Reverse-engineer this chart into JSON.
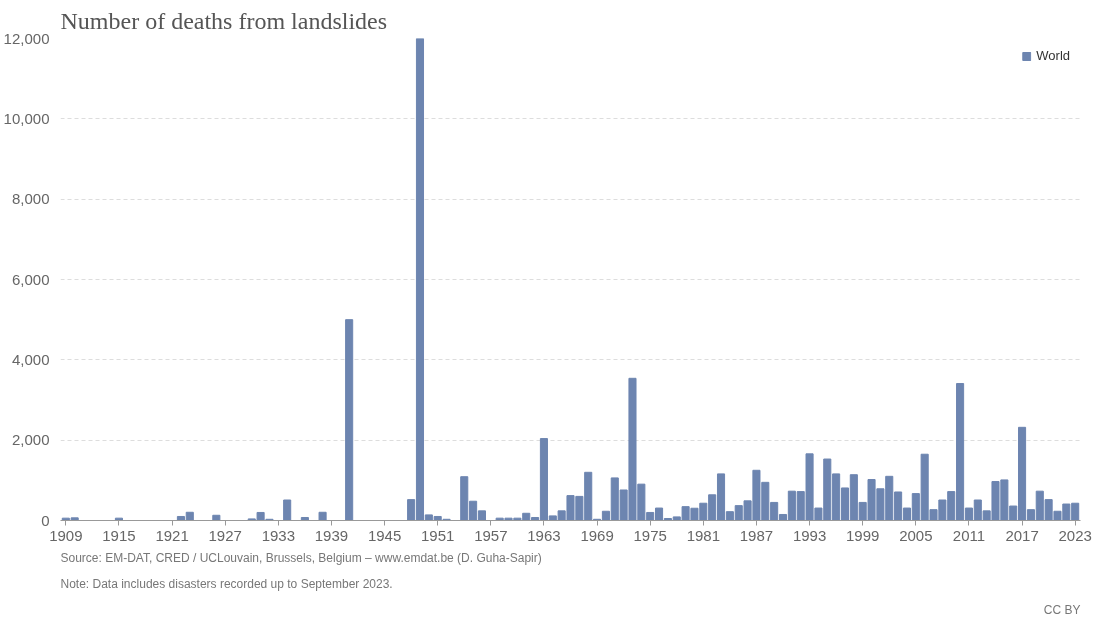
{
  "chart_data": {
    "type": "bar",
    "title": "Number of deaths from landslides",
    "x": [
      1909,
      1910,
      1911,
      1912,
      1913,
      1914,
      1915,
      1916,
      1917,
      1918,
      1919,
      1920,
      1921,
      1922,
      1923,
      1924,
      1925,
      1926,
      1927,
      1928,
      1929,
      1930,
      1931,
      1932,
      1933,
      1934,
      1935,
      1936,
      1937,
      1938,
      1939,
      1940,
      1941,
      1942,
      1943,
      1944,
      1945,
      1946,
      1947,
      1948,
      1949,
      1950,
      1951,
      1952,
      1953,
      1954,
      1955,
      1956,
      1957,
      1958,
      1959,
      1960,
      1961,
      1962,
      1963,
      1964,
      1965,
      1966,
      1967,
      1968,
      1969,
      1970,
      1971,
      1972,
      1973,
      1974,
      1975,
      1976,
      1977,
      1978,
      1979,
      1980,
      1981,
      1982,
      1983,
      1984,
      1985,
      1986,
      1987,
      1988,
      1989,
      1990,
      1991,
      1992,
      1993,
      1994,
      1995,
      1996,
      1997,
      1998,
      1999,
      2000,
      2001,
      2002,
      2003,
      2004,
      2005,
      2006,
      2007,
      2008,
      2009,
      2010,
      2011,
      2012,
      2013,
      2014,
      2015,
      2016,
      2017,
      2018,
      2019,
      2020,
      2021,
      2022,
      2023
    ],
    "series": [
      {
        "name": "World",
        "color": "#6d85b0",
        "values": [
          58,
          66,
          null,
          null,
          null,
          null,
          58,
          null,
          null,
          null,
          null,
          null,
          null,
          100,
          205,
          null,
          null,
          130,
          null,
          null,
          null,
          40,
          200,
          30,
          null,
          510,
          null,
          75,
          null,
          205,
          null,
          null,
          5000,
          null,
          null,
          null,
          null,
          null,
          null,
          520,
          12000,
          140,
          100,
          30,
          null,
          1090,
          480,
          240,
          null,
          58,
          58,
          58,
          180,
          75,
          2040,
          115,
          240,
          620,
          600,
          1200,
          30,
          230,
          1060,
          760,
          3540,
          905,
          200,
          310,
          50,
          90,
          345,
          305,
          430,
          640,
          1160,
          220,
          370,
          490,
          1250,
          950,
          450,
          150,
          730,
          720,
          1660,
          310,
          1530,
          1160,
          810,
          1140,
          450,
          1020,
          790,
          1100,
          710,
          310,
          670,
          1650,
          270,
          510,
          720,
          3410,
          310,
          510,
          240,
          970,
          1010,
          360,
          2320,
          270,
          730,
          520,
          230,
          410,
          430
        ]
      }
    ],
    "xlim": [
      1908.4,
      2023.6
    ],
    "xticks": [
      1909,
      1915,
      1921,
      1927,
      1933,
      1939,
      1945,
      1951,
      1957,
      1963,
      1969,
      1975,
      1981,
      1987,
      1993,
      1999,
      2005,
      2011,
      2017,
      2023
    ],
    "ylim": [
      0,
      12000
    ],
    "yticks": [
      {
        "value": 0,
        "label": "0"
      },
      {
        "value": 2000,
        "label": "2,000"
      },
      {
        "value": 4000,
        "label": "4,000"
      },
      {
        "value": 6000,
        "label": "6,000"
      },
      {
        "value": 8000,
        "label": "8,000"
      },
      {
        "value": 10000,
        "label": "10,000"
      },
      {
        "value": 12000,
        "label": "12,000"
      }
    ],
    "grid": "y",
    "legend": "top right",
    "annotations": [
      "Source: EM-DAT, CRED / UCLouvain, Brussels, Belgium – www.emdat.be (D. Guha-Sapir)",
      "Note: Data includes disasters recorded up to September 2023.",
      "CC BY"
    ]
  }
}
